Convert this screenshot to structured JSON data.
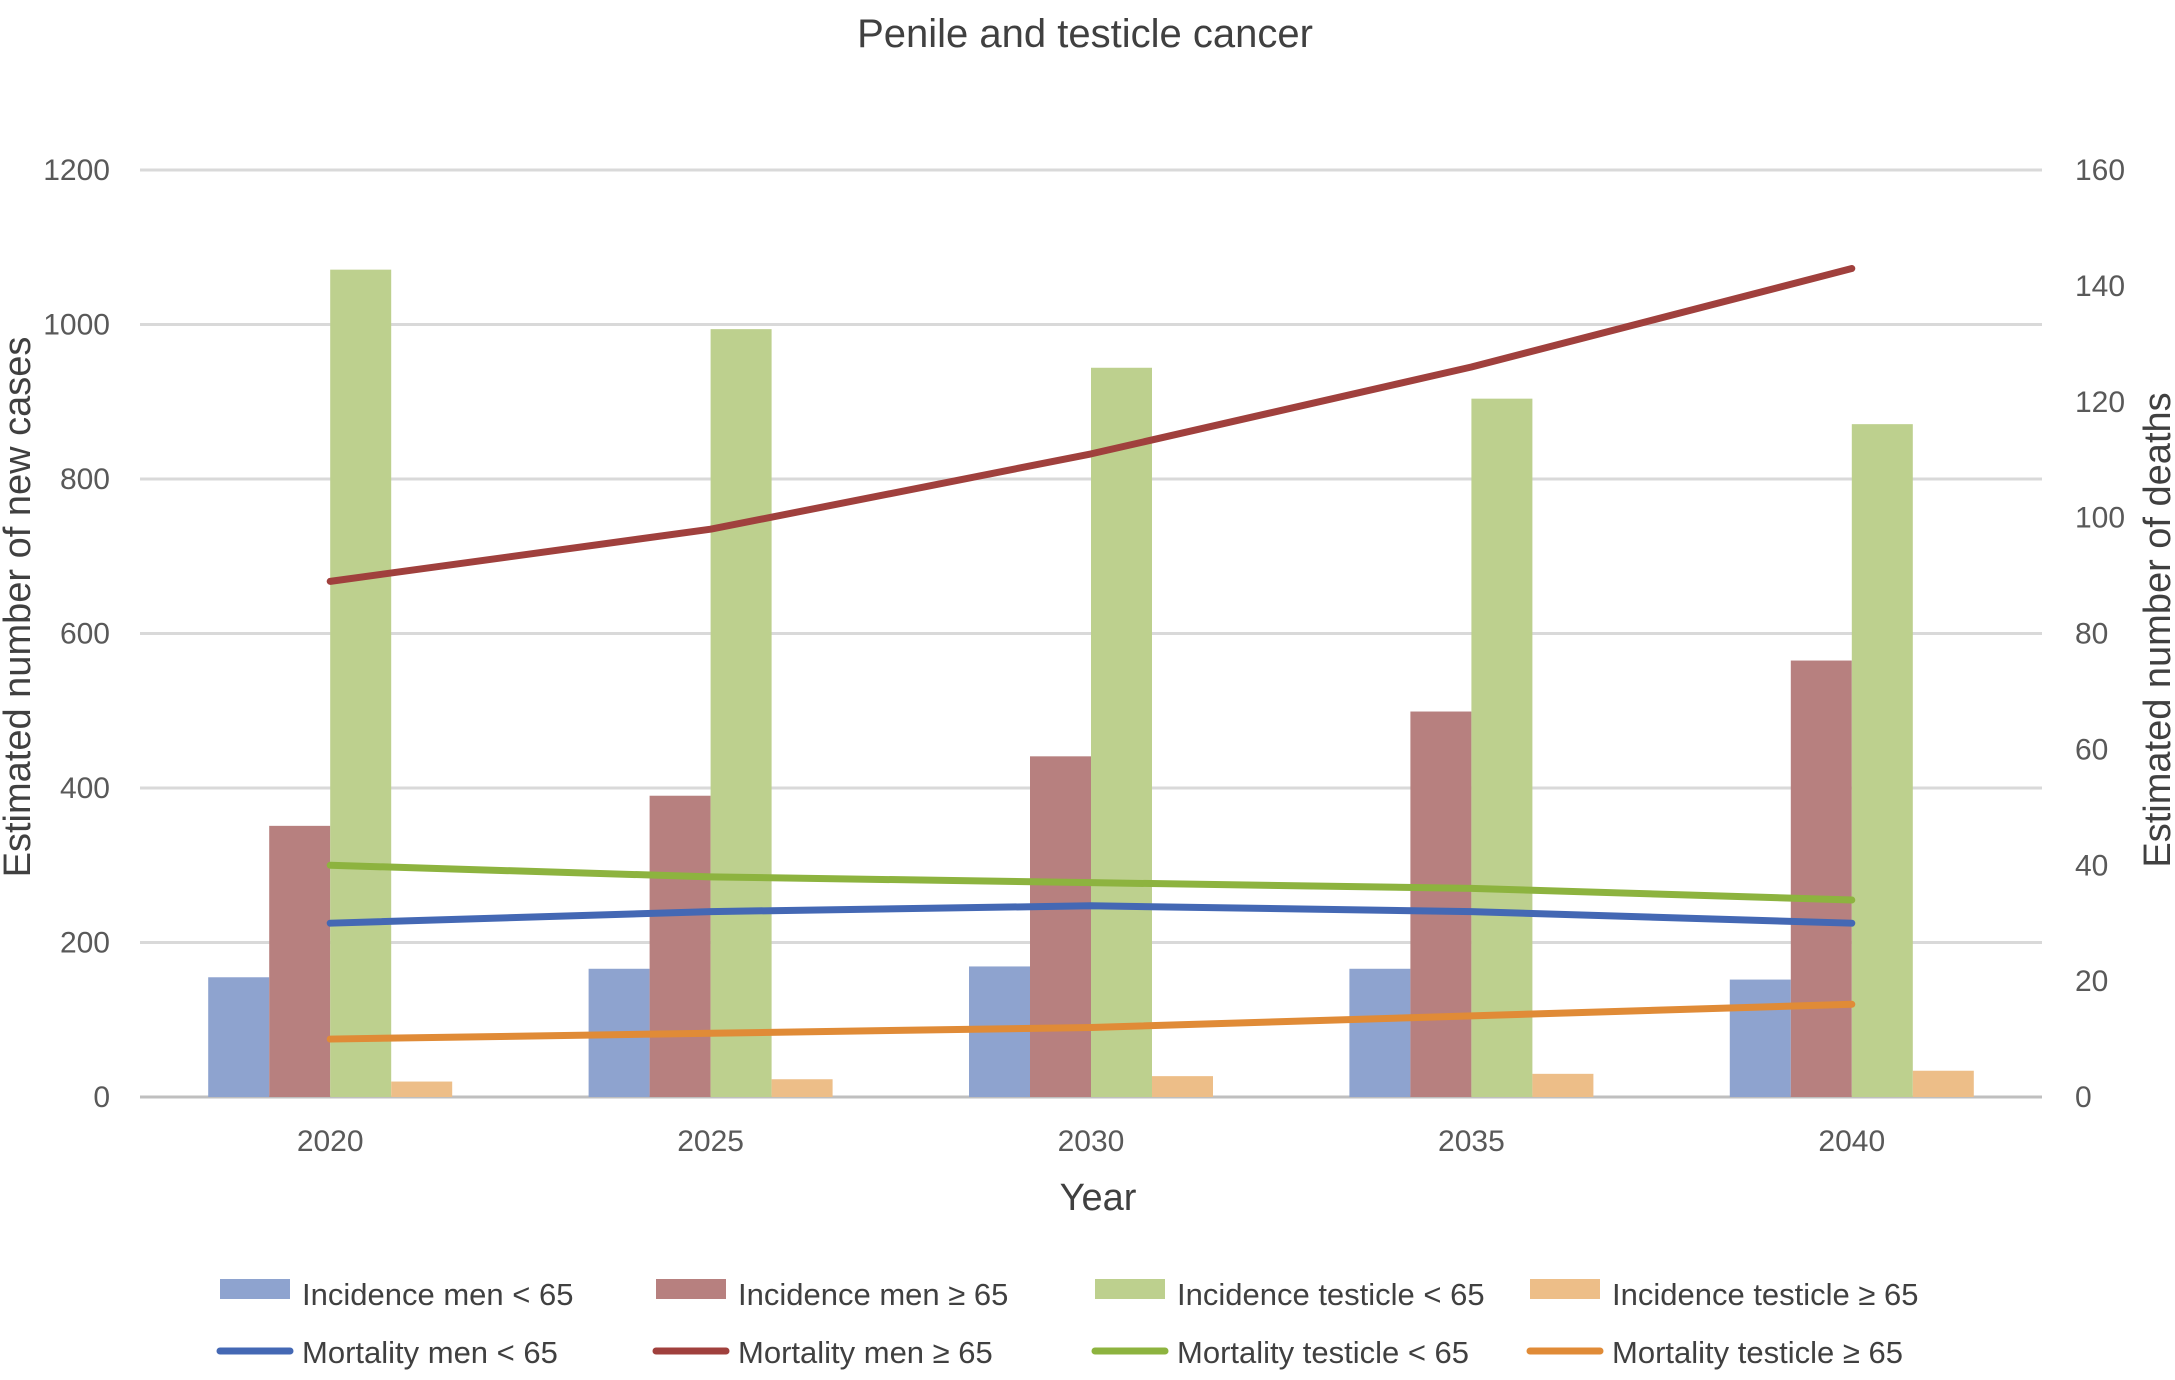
{
  "chart_data": {
    "type": "bar",
    "title": "Penile and testicle cancer",
    "xlabel": "Year",
    "ylabel": "Estimated number of new cases",
    "y2label": "Estimated number of deaths",
    "categories": [
      "2020",
      "2025",
      "2030",
      "2035",
      "2040"
    ],
    "ylim": [
      0,
      1200
    ],
    "y2lim": [
      0,
      160
    ],
    "yticks": [
      0,
      200,
      400,
      600,
      800,
      1000,
      1200
    ],
    "y2ticks": [
      0,
      20,
      40,
      60,
      80,
      100,
      120,
      140,
      160
    ],
    "grid": true,
    "legend_position": "bottom",
    "bar_series": [
      {
        "name": "Incidence men < 65",
        "color": "#8EA3CF",
        "values": [
          155,
          166,
          169,
          166,
          152
        ]
      },
      {
        "name": "Incidence men ≥ 65",
        "color": "#B7807F",
        "values": [
          351,
          390,
          441,
          499,
          565
        ]
      },
      {
        "name": "Incidence testicle < 65",
        "color": "#BDD08E",
        "values": [
          1071,
          994,
          944,
          904,
          871
        ]
      },
      {
        "name": "Incidence testicle ≥ 65",
        "color": "#EDBE88",
        "values": [
          20,
          23,
          27,
          30,
          34
        ]
      }
    ],
    "line_series": [
      {
        "name": "Mortality men < 65",
        "color": "#4468B4",
        "axis": "right",
        "values": [
          30,
          32,
          33,
          32,
          30
        ]
      },
      {
        "name": "Mortality men ≥ 65",
        "color": "#A0403D",
        "axis": "right",
        "values": [
          89,
          98,
          111,
          126,
          143
        ]
      },
      {
        "name": "Mortality testicle < 65",
        "color": "#8DB33F",
        "axis": "right",
        "values": [
          40,
          38,
          37,
          36,
          34
        ]
      },
      {
        "name": "Mortality testicle ≥ 65",
        "color": "#E08B37",
        "axis": "right",
        "values": [
          10,
          11,
          12,
          14,
          16
        ]
      }
    ]
  }
}
